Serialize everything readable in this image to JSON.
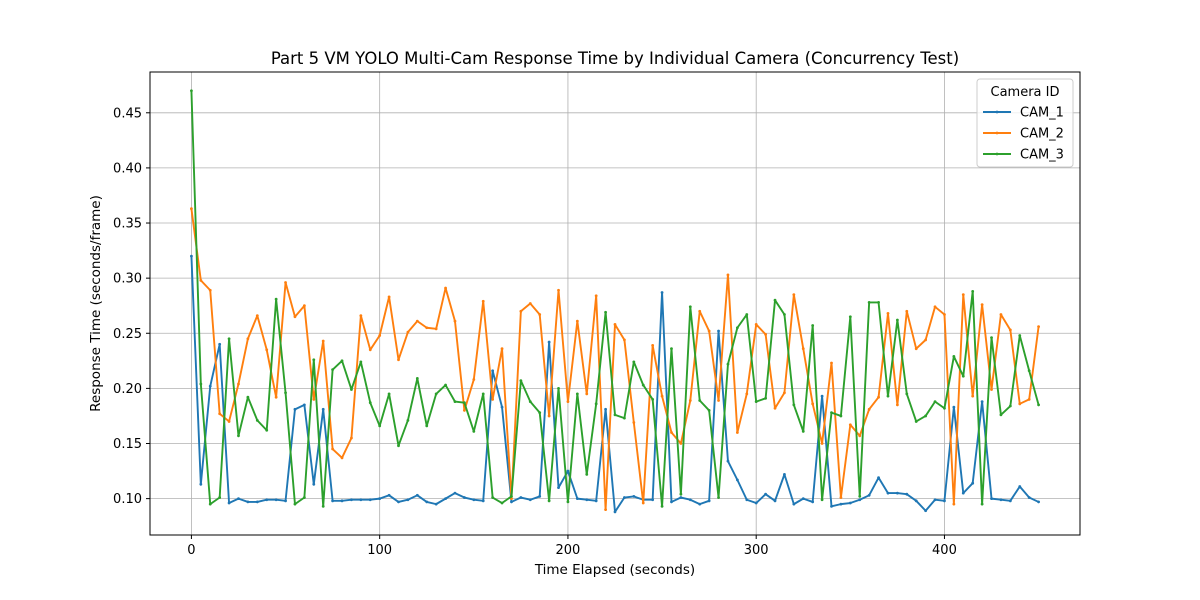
{
  "chart_data": {
    "type": "line",
    "title": "Part 5 VM YOLO Multi-Cam Response Time by Individual Camera (Concurrency Test)",
    "xlabel": "Time Elapsed (seconds)",
    "ylabel": "Response Time (seconds/frame)",
    "xlim": [
      -22,
      472
    ],
    "ylim": [
      0.067,
      0.487
    ],
    "xticks": [
      0,
      100,
      200,
      300,
      400
    ],
    "yticks": [
      0.1,
      0.15,
      0.2,
      0.25,
      0.3,
      0.35,
      0.4,
      0.45
    ],
    "xtick_labels": [
      "0",
      "100",
      "200",
      "300",
      "400"
    ],
    "ytick_labels": [
      "0.10",
      "0.15",
      "0.20",
      "0.25",
      "0.30",
      "0.35",
      "0.40",
      "0.45"
    ],
    "grid": true,
    "legend": {
      "title": "Camera ID",
      "placement": "top-right"
    },
    "series": [
      {
        "name": "CAM_1",
        "color": "#1f77b4",
        "points": [
          [
            0,
            0.32
          ],
          [
            5,
            0.113
          ],
          [
            10,
            0.202
          ],
          [
            15,
            0.24
          ],
          [
            20,
            0.096
          ],
          [
            25,
            0.1
          ],
          [
            30,
            0.097
          ],
          [
            35,
            0.097
          ],
          [
            40,
            0.099
          ],
          [
            45,
            0.099
          ],
          [
            50,
            0.098
          ],
          [
            55,
            0.181
          ],
          [
            60,
            0.185
          ],
          [
            65,
            0.113
          ],
          [
            70,
            0.181
          ],
          [
            75,
            0.098
          ],
          [
            80,
            0.098
          ],
          [
            85,
            0.099
          ],
          [
            90,
            0.099
          ],
          [
            95,
            0.099
          ],
          [
            100,
            0.1
          ],
          [
            105,
            0.103
          ],
          [
            110,
            0.097
          ],
          [
            115,
            0.099
          ],
          [
            120,
            0.103
          ],
          [
            125,
            0.097
          ],
          [
            130,
            0.095
          ],
          [
            135,
            0.1
          ],
          [
            140,
            0.105
          ],
          [
            145,
            0.101
          ],
          [
            150,
            0.099
          ],
          [
            155,
            0.098
          ],
          [
            160,
            0.216
          ],
          [
            165,
            0.183
          ],
          [
            170,
            0.097
          ],
          [
            175,
            0.101
          ],
          [
            180,
            0.099
          ],
          [
            185,
            0.102
          ],
          [
            190,
            0.242
          ],
          [
            195,
            0.11
          ],
          [
            200,
            0.125
          ],
          [
            205,
            0.1
          ],
          [
            210,
            0.099
          ],
          [
            215,
            0.098
          ],
          [
            220,
            0.181
          ],
          [
            225,
            0.088
          ],
          [
            230,
            0.101
          ],
          [
            235,
            0.102
          ],
          [
            240,
            0.099
          ],
          [
            245,
            0.099
          ],
          [
            250,
            0.287
          ],
          [
            255,
            0.097
          ],
          [
            260,
            0.101
          ],
          [
            265,
            0.099
          ],
          [
            270,
            0.095
          ],
          [
            275,
            0.098
          ],
          [
            280,
            0.252
          ],
          [
            285,
            0.134
          ],
          [
            290,
            0.117
          ],
          [
            295,
            0.099
          ],
          [
            300,
            0.096
          ],
          [
            305,
            0.104
          ],
          [
            310,
            0.098
          ],
          [
            315,
            0.122
          ],
          [
            320,
            0.095
          ],
          [
            325,
            0.1
          ],
          [
            330,
            0.097
          ],
          [
            335,
            0.193
          ],
          [
            340,
            0.093
          ],
          [
            345,
            0.095
          ],
          [
            350,
            0.096
          ],
          [
            355,
            0.099
          ],
          [
            360,
            0.103
          ],
          [
            365,
            0.119
          ],
          [
            370,
            0.105
          ],
          [
            375,
            0.105
          ],
          [
            380,
            0.104
          ],
          [
            385,
            0.098
          ],
          [
            390,
            0.089
          ],
          [
            395,
            0.099
          ],
          [
            400,
            0.098
          ],
          [
            405,
            0.183
          ],
          [
            410,
            0.105
          ],
          [
            415,
            0.114
          ],
          [
            420,
            0.188
          ],
          [
            425,
            0.1
          ],
          [
            430,
            0.099
          ],
          [
            435,
            0.098
          ],
          [
            440,
            0.111
          ],
          [
            445,
            0.101
          ],
          [
            450,
            0.097
          ]
        ]
      },
      {
        "name": "CAM_2",
        "color": "#ff7f0e",
        "points": [
          [
            0,
            0.363
          ],
          [
            5,
            0.298
          ],
          [
            10,
            0.289
          ],
          [
            15,
            0.177
          ],
          [
            20,
            0.17
          ],
          [
            25,
            0.204
          ],
          [
            30,
            0.245
          ],
          [
            35,
            0.266
          ],
          [
            40,
            0.235
          ],
          [
            45,
            0.192
          ],
          [
            50,
            0.296
          ],
          [
            55,
            0.265
          ],
          [
            60,
            0.275
          ],
          [
            65,
            0.19
          ],
          [
            70,
            0.243
          ],
          [
            75,
            0.145
          ],
          [
            80,
            0.137
          ],
          [
            85,
            0.155
          ],
          [
            90,
            0.266
          ],
          [
            95,
            0.235
          ],
          [
            100,
            0.248
          ],
          [
            105,
            0.283
          ],
          [
            110,
            0.226
          ],
          [
            115,
            0.251
          ],
          [
            120,
            0.261
          ],
          [
            125,
            0.255
          ],
          [
            130,
            0.254
          ],
          [
            135,
            0.291
          ],
          [
            140,
            0.261
          ],
          [
            145,
            0.18
          ],
          [
            150,
            0.208
          ],
          [
            155,
            0.279
          ],
          [
            160,
            0.19
          ],
          [
            165,
            0.236
          ],
          [
            170,
            0.1
          ],
          [
            175,
            0.27
          ],
          [
            180,
            0.277
          ],
          [
            185,
            0.267
          ],
          [
            190,
            0.175
          ],
          [
            195,
            0.289
          ],
          [
            200,
            0.188
          ],
          [
            205,
            0.261
          ],
          [
            210,
            0.195
          ],
          [
            215,
            0.284
          ],
          [
            220,
            0.09
          ],
          [
            225,
            0.258
          ],
          [
            230,
            0.244
          ],
          [
            235,
            0.169
          ],
          [
            240,
            0.096
          ],
          [
            245,
            0.239
          ],
          [
            250,
            0.193
          ],
          [
            255,
            0.16
          ],
          [
            260,
            0.15
          ],
          [
            265,
            0.189
          ],
          [
            270,
            0.27
          ],
          [
            275,
            0.252
          ],
          [
            280,
            0.189
          ],
          [
            285,
            0.303
          ],
          [
            290,
            0.16
          ],
          [
            295,
            0.195
          ],
          [
            300,
            0.258
          ],
          [
            305,
            0.249
          ],
          [
            310,
            0.182
          ],
          [
            315,
            0.196
          ],
          [
            320,
            0.285
          ],
          [
            325,
            0.236
          ],
          [
            330,
            0.186
          ],
          [
            335,
            0.15
          ],
          [
            340,
            0.223
          ],
          [
            345,
            0.101
          ],
          [
            350,
            0.167
          ],
          [
            355,
            0.157
          ],
          [
            360,
            0.181
          ],
          [
            365,
            0.192
          ],
          [
            370,
            0.268
          ],
          [
            375,
            0.185
          ],
          [
            380,
            0.27
          ],
          [
            385,
            0.236
          ],
          [
            390,
            0.244
          ],
          [
            395,
            0.274
          ],
          [
            400,
            0.267
          ],
          [
            405,
            0.095
          ],
          [
            410,
            0.285
          ],
          [
            415,
            0.193
          ],
          [
            420,
            0.276
          ],
          [
            425,
            0.199
          ],
          [
            430,
            0.267
          ],
          [
            435,
            0.253
          ],
          [
            440,
            0.186
          ],
          [
            445,
            0.19
          ],
          [
            450,
            0.256
          ]
        ]
      },
      {
        "name": "CAM_3",
        "color": "#2ca02c",
        "points": [
          [
            0,
            0.47
          ],
          [
            5,
            0.204
          ],
          [
            10,
            0.095
          ],
          [
            15,
            0.101
          ],
          [
            20,
            0.245
          ],
          [
            25,
            0.157
          ],
          [
            30,
            0.192
          ],
          [
            35,
            0.171
          ],
          [
            40,
            0.162
          ],
          [
            45,
            0.281
          ],
          [
            50,
            0.196
          ],
          [
            55,
            0.095
          ],
          [
            60,
            0.101
          ],
          [
            65,
            0.226
          ],
          [
            70,
            0.093
          ],
          [
            75,
            0.217
          ],
          [
            80,
            0.225
          ],
          [
            85,
            0.199
          ],
          [
            90,
            0.224
          ],
          [
            95,
            0.187
          ],
          [
            100,
            0.166
          ],
          [
            105,
            0.195
          ],
          [
            110,
            0.148
          ],
          [
            115,
            0.171
          ],
          [
            120,
            0.209
          ],
          [
            125,
            0.166
          ],
          [
            130,
            0.195
          ],
          [
            135,
            0.203
          ],
          [
            140,
            0.188
          ],
          [
            145,
            0.187
          ],
          [
            150,
            0.161
          ],
          [
            155,
            0.195
          ],
          [
            160,
            0.101
          ],
          [
            165,
            0.096
          ],
          [
            170,
            0.102
          ],
          [
            175,
            0.207
          ],
          [
            180,
            0.188
          ],
          [
            185,
            0.178
          ],
          [
            190,
            0.098
          ],
          [
            195,
            0.2
          ],
          [
            200,
            0.097
          ],
          [
            205,
            0.195
          ],
          [
            210,
            0.122
          ],
          [
            215,
            0.186
          ],
          [
            220,
            0.269
          ],
          [
            225,
            0.176
          ],
          [
            230,
            0.173
          ],
          [
            235,
            0.224
          ],
          [
            240,
            0.203
          ],
          [
            245,
            0.19
          ],
          [
            250,
            0.093
          ],
          [
            255,
            0.236
          ],
          [
            260,
            0.104
          ],
          [
            265,
            0.274
          ],
          [
            270,
            0.189
          ],
          [
            275,
            0.18
          ],
          [
            280,
            0.101
          ],
          [
            285,
            0.222
          ],
          [
            290,
            0.255
          ],
          [
            295,
            0.267
          ],
          [
            300,
            0.188
          ],
          [
            305,
            0.191
          ],
          [
            310,
            0.28
          ],
          [
            315,
            0.267
          ],
          [
            320,
            0.185
          ],
          [
            325,
            0.161
          ],
          [
            330,
            0.257
          ],
          [
            335,
            0.099
          ],
          [
            340,
            0.178
          ],
          [
            345,
            0.175
          ],
          [
            350,
            0.265
          ],
          [
            355,
            0.102
          ],
          [
            360,
            0.278
          ],
          [
            365,
            0.278
          ],
          [
            370,
            0.193
          ],
          [
            375,
            0.262
          ],
          [
            380,
            0.195
          ],
          [
            385,
            0.17
          ],
          [
            390,
            0.175
          ],
          [
            395,
            0.188
          ],
          [
            400,
            0.182
          ],
          [
            405,
            0.229
          ],
          [
            410,
            0.211
          ],
          [
            415,
            0.288
          ],
          [
            420,
            0.095
          ],
          [
            425,
            0.246
          ],
          [
            430,
            0.176
          ],
          [
            435,
            0.184
          ],
          [
            440,
            0.248
          ],
          [
            445,
            0.216
          ],
          [
            450,
            0.185
          ]
        ]
      }
    ]
  }
}
